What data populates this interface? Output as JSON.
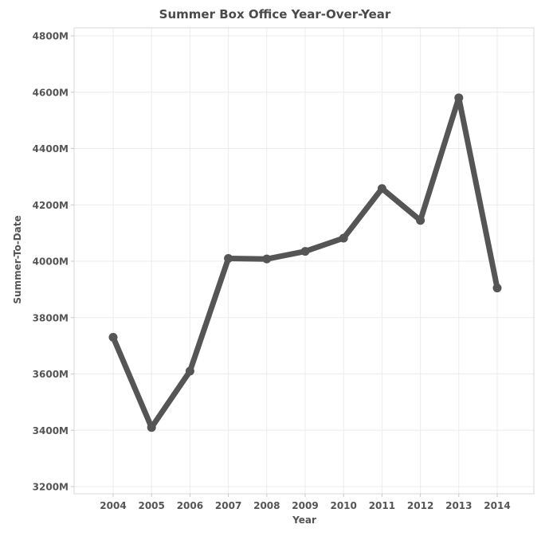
{
  "chart_data": {
    "type": "line",
    "title": "Summer Box Office Year-Over-Year",
    "xlabel": "Year",
    "ylabel": "Summer-To-Date",
    "categories": [
      "2004",
      "2005",
      "2006",
      "2007",
      "2008",
      "2009",
      "2010",
      "2011",
      "2012",
      "2013",
      "2014"
    ],
    "series": [
      {
        "values": [
          3730,
          3410,
          3610,
          4010,
          4008,
          4035,
          4082,
          4258,
          4145,
          4580,
          3905
        ]
      }
    ],
    "ylim": [
      3200,
      4800
    ],
    "yticks": [
      {
        "value": 3200,
        "label": "3200M"
      },
      {
        "value": 3400,
        "label": "3400M"
      },
      {
        "value": 3600,
        "label": "3600M"
      },
      {
        "value": 3800,
        "label": "3800M"
      },
      {
        "value": 4000,
        "label": "4000M"
      },
      {
        "value": 4200,
        "label": "4200M"
      },
      {
        "value": 4400,
        "label": "4400M"
      },
      {
        "value": 4600,
        "label": "4600M"
      },
      {
        "value": 4800,
        "label": "4800M"
      }
    ],
    "grid": true,
    "line_color": "#555555"
  }
}
